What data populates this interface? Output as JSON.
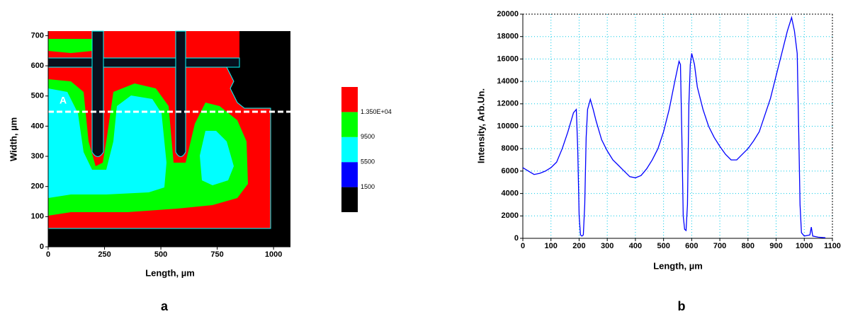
{
  "chart_data": [
    {
      "type": "image",
      "xlabel": "Length, µm",
      "ylabel": "Width, µm",
      "xlim": [
        0,
        1075
      ],
      "ylim": [
        0,
        715
      ],
      "xticks": [
        0,
        250,
        500,
        750,
        1000
      ],
      "yticks": [
        0,
        100,
        200,
        300,
        400,
        500,
        600,
        700
      ],
      "annotation": "A",
      "panel_label": "a",
      "colorbar": {
        "levels": [
          1500,
          5500,
          9500,
          {
            "value": 13500,
            "label": "1.350E+04"
          }
        ],
        "colors": [
          "#000000",
          "#0000ff",
          "#00ffff",
          "#00ff00",
          "#ff0000"
        ]
      }
    },
    {
      "type": "line",
      "xlabel": "Length, µm",
      "ylabel": "Intensity, Arb.Un.",
      "panel_label": "b",
      "color": "#0000ff",
      "grid": true,
      "xlim": [
        0,
        1100
      ],
      "ylim": [
        0,
        20000
      ],
      "xticks": [
        0,
        100,
        200,
        300,
        400,
        500,
        600,
        700,
        800,
        900,
        1000,
        1100
      ],
      "yticks": [
        0,
        2000,
        4000,
        6000,
        8000,
        10000,
        12000,
        14000,
        16000,
        18000,
        20000
      ],
      "x": [
        0,
        20,
        40,
        60,
        80,
        100,
        120,
        140,
        160,
        180,
        190,
        195,
        200,
        205,
        210,
        215,
        220,
        225,
        230,
        240,
        250,
        260,
        280,
        300,
        320,
        340,
        360,
        380,
        400,
        420,
        440,
        460,
        480,
        500,
        520,
        540,
        555,
        560,
        565,
        570,
        575,
        580,
        585,
        590,
        595,
        600,
        610,
        620,
        640,
        660,
        680,
        700,
        720,
        740,
        760,
        780,
        800,
        820,
        840,
        860,
        880,
        900,
        920,
        940,
        955,
        965,
        975,
        980,
        985,
        990,
        1000,
        1020,
        1025,
        1030,
        1050,
        1075
      ],
      "values": [
        6300,
        6000,
        5700,
        5800,
        6000,
        6300,
        6800,
        8000,
        9500,
        11200,
        11500,
        8000,
        2000,
        300,
        200,
        300,
        3000,
        9000,
        11500,
        12400,
        11500,
        10500,
        8800,
        7800,
        7000,
        6500,
        6000,
        5500,
        5400,
        5600,
        6200,
        7000,
        8000,
        9500,
        11500,
        14000,
        15800,
        15500,
        9000,
        2000,
        800,
        700,
        3000,
        12000,
        15500,
        16500,
        15500,
        13500,
        11500,
        10000,
        9000,
        8200,
        7500,
        7000,
        7000,
        7500,
        8000,
        8700,
        9500,
        11000,
        12500,
        14500,
        16500,
        18500,
        19700,
        18500,
        16500,
        10000,
        3000,
        500,
        200,
        300,
        1000,
        200,
        100,
        50
      ]
    }
  ]
}
